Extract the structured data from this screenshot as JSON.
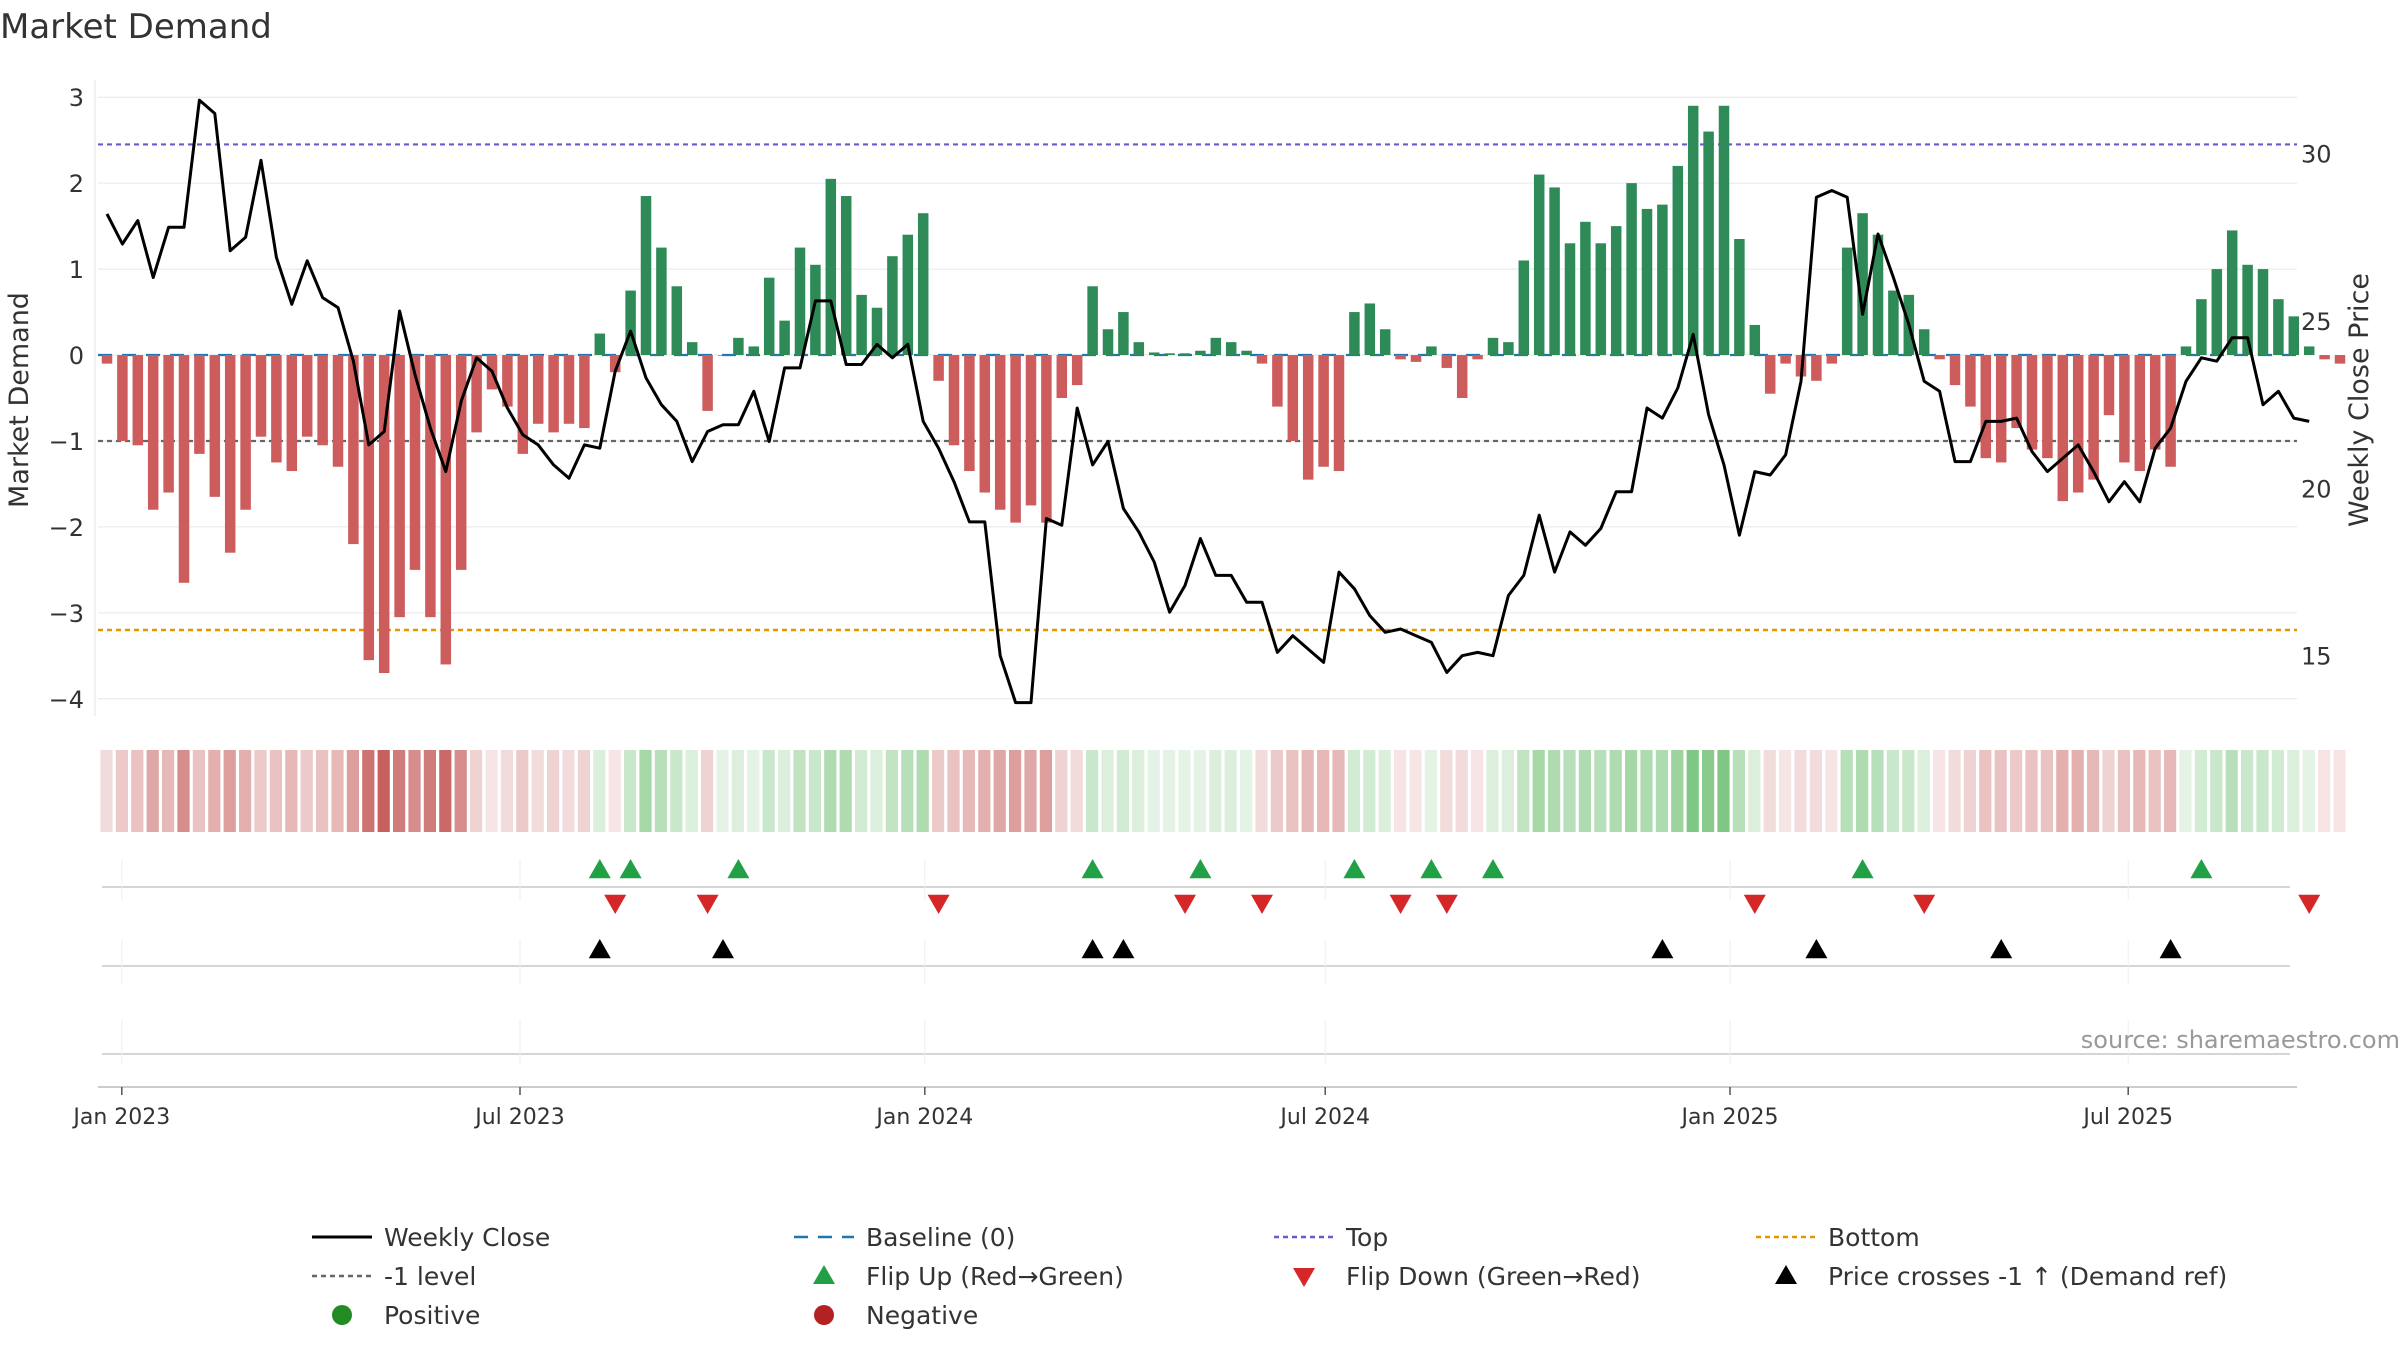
{
  "title": "Market Demand",
  "source": "source: sharemaestro.com",
  "colors": {
    "positive_bar": "#2e8b57",
    "negative_bar": "#cd5c5c",
    "price_line": "#000000",
    "top_line": "#6a5acd",
    "bottom_line": "#e69500",
    "minus1_line": "#666666",
    "baseline": "#1f77b4",
    "flip_up": "#22a045",
    "flip_down": "#d62728",
    "cross": "#000000",
    "strip_pos": "#4caf50",
    "strip_neg": "#c0504d",
    "grid": "#e6e6e6",
    "axis_text": "#333333",
    "source_text": "#999999"
  },
  "chart_data": {
    "type": "bar",
    "title": "Market Demand",
    "ylabel": "Market Demand",
    "y2label": "Weekly Close Price",
    "ylim": [
      -4.2,
      3.2
    ],
    "y2lim": [
      13.2,
      32.2
    ],
    "yticks": [
      -4,
      -3,
      -2,
      -1,
      0,
      1,
      2,
      3
    ],
    "y2ticks": [
      15,
      20,
      25,
      30
    ],
    "top_level": 2.45,
    "bottom_level": -3.2,
    "minus1_level": -1,
    "x_start": "2022-12-23",
    "week_days": 7,
    "x_ticks": [
      {
        "label": "Jan 2023",
        "day": 9
      },
      {
        "label": "Jul 2023",
        "day": 190
      },
      {
        "label": "Jan 2024",
        "day": 374
      },
      {
        "label": "Jul 2024",
        "day": 556
      },
      {
        "label": "Jan 2025",
        "day": 740
      },
      {
        "label": "Jul 2025",
        "day": 921
      }
    ],
    "demand": [
      -0.1,
      -1.0,
      -1.05,
      -1.8,
      -1.6,
      -2.65,
      -1.15,
      -1.65,
      -2.3,
      -1.8,
      -0.95,
      -1.25,
      -1.35,
      -0.95,
      -1.05,
      -1.3,
      -2.2,
      -3.55,
      -3.7,
      -3.05,
      -2.5,
      -3.05,
      -3.6,
      -2.5,
      -0.9,
      -0.4,
      -0.6,
      -1.15,
      -0.8,
      -0.9,
      -0.8,
      -0.85,
      0.25,
      -0.2,
      0.75,
      1.85,
      1.25,
      0.8,
      0.15,
      -0.65,
      0.0,
      0.2,
      0.1,
      0.9,
      0.4,
      1.25,
      1.05,
      2.05,
      1.85,
      0.7,
      0.55,
      1.15,
      1.4,
      1.65,
      -0.3,
      -1.05,
      -1.35,
      -1.6,
      -1.8,
      -1.95,
      -1.75,
      -1.95,
      -0.5,
      -0.35,
      0.8,
      0.3,
      0.5,
      0.15,
      0.03,
      0.02,
      0.02,
      0.05,
      0.2,
      0.15,
      0.05,
      -0.1,
      -0.6,
      -1.0,
      -1.45,
      -1.3,
      -1.35,
      0.5,
      0.6,
      0.3,
      -0.05,
      -0.08,
      0.1,
      -0.15,
      -0.5,
      -0.05,
      0.2,
      0.15,
      1.1,
      2.1,
      1.95,
      1.3,
      1.55,
      1.3,
      1.5,
      2.0,
      1.7,
      1.75,
      2.2,
      2.9,
      2.6,
      2.9,
      1.35,
      0.35,
      -0.45,
      -0.1,
      -0.25,
      -0.3,
      -0.1,
      1.25,
      1.65,
      1.4,
      0.75,
      0.7,
      0.3,
      -0.05,
      -0.35,
      -0.6,
      -1.2,
      -1.25,
      -0.85,
      -1.1,
      -1.2,
      -1.7,
      -1.6,
      -1.45,
      -0.7,
      -1.25,
      -1.35,
      -1.1,
      -1.3,
      0.1,
      0.65,
      1.0,
      1.45,
      1.05,
      1.0,
      0.65,
      0.45,
      0.1,
      -0.05,
      -0.1
    ],
    "close": [
      28.2,
      27.3,
      28.0,
      26.3,
      27.8,
      27.8,
      31.6,
      31.2,
      27.1,
      27.5,
      29.8,
      26.9,
      25.5,
      26.8,
      25.7,
      25.4,
      23.8,
      21.3,
      21.7,
      25.3,
      23.4,
      21.8,
      20.5,
      22.6,
      23.9,
      23.5,
      22.4,
      21.6,
      21.3,
      20.7,
      20.3,
      21.3,
      21.2,
      23.5,
      24.7,
      23.3,
      22.5,
      22.0,
      20.8,
      21.7,
      21.9,
      21.9,
      22.9,
      21.4,
      23.6,
      23.6,
      25.6,
      25.6,
      23.7,
      23.7,
      24.3,
      23.9,
      24.3,
      22.0,
      21.2,
      20.2,
      19.0,
      19.0,
      15.0,
      13.6,
      13.6,
      19.1,
      18.9,
      22.4,
      20.7,
      21.4,
      19.4,
      18.7,
      17.8,
      16.3,
      17.1,
      18.5,
      17.4,
      17.4,
      16.6,
      16.6,
      15.1,
      15.6,
      15.2,
      14.8,
      17.5,
      17.0,
      16.2,
      15.7,
      15.8,
      15.6,
      15.4,
      14.5,
      15.0,
      15.1,
      15.0,
      16.8,
      17.4,
      19.2,
      17.5,
      18.7,
      18.3,
      18.8,
      19.9,
      19.9,
      22.4,
      22.1,
      23.0,
      24.6,
      22.2,
      20.7,
      18.6,
      20.5,
      20.4,
      21.0,
      23.2,
      28.7,
      28.9,
      28.7,
      25.2,
      27.6,
      26.3,
      24.9,
      23.2,
      22.9,
      20.8,
      20.8,
      22.0,
      22.0,
      22.1,
      21.1,
      20.5,
      20.9,
      21.3,
      20.5,
      19.6,
      20.2,
      19.6,
      21.2,
      21.8,
      23.2,
      23.9,
      23.8,
      24.5,
      24.5,
      22.5,
      22.9,
      22.1,
      22.0
    ],
    "strip_intensity": [
      0.2,
      0.3,
      0.35,
      0.5,
      0.4,
      0.65,
      0.35,
      0.45,
      0.55,
      0.45,
      0.3,
      0.35,
      0.4,
      0.3,
      0.35,
      0.4,
      0.55,
      0.8,
      0.9,
      0.75,
      0.65,
      0.75,
      0.85,
      0.65,
      0.25,
      0.15,
      0.2,
      0.3,
      0.2,
      0.25,
      0.2,
      0.25,
      0.2,
      0.15,
      0.3,
      0.5,
      0.4,
      0.3,
      0.2,
      0.25,
      0.15,
      0.2,
      0.15,
      0.3,
      0.2,
      0.35,
      0.3,
      0.45,
      0.45,
      0.25,
      0.2,
      0.35,
      0.4,
      0.45,
      0.3,
      0.35,
      0.4,
      0.45,
      0.5,
      0.55,
      0.5,
      0.55,
      0.25,
      0.2,
      0.3,
      0.2,
      0.25,
      0.2,
      0.15,
      0.15,
      0.15,
      0.15,
      0.2,
      0.2,
      0.15,
      0.2,
      0.3,
      0.35,
      0.4,
      0.4,
      0.4,
      0.25,
      0.25,
      0.2,
      0.15,
      0.15,
      0.15,
      0.2,
      0.2,
      0.15,
      0.2,
      0.2,
      0.35,
      0.5,
      0.45,
      0.4,
      0.45,
      0.4,
      0.45,
      0.5,
      0.45,
      0.45,
      0.55,
      0.7,
      0.65,
      0.7,
      0.4,
      0.2,
      0.2,
      0.15,
      0.2,
      0.2,
      0.15,
      0.4,
      0.45,
      0.4,
      0.3,
      0.3,
      0.2,
      0.15,
      0.2,
      0.25,
      0.35,
      0.35,
      0.3,
      0.35,
      0.35,
      0.45,
      0.45,
      0.4,
      0.25,
      0.35,
      0.4,
      0.35,
      0.4,
      0.15,
      0.25,
      0.3,
      0.4,
      0.3,
      0.3,
      0.25,
      0.2,
      0.15,
      0.15,
      0.15
    ],
    "flip_up_weeks": [
      32,
      34,
      41,
      64,
      71,
      81,
      86,
      90,
      114,
      136
    ],
    "flip_down_weeks": [
      33,
      39,
      54,
      70,
      75,
      84,
      87,
      107,
      118,
      143
    ],
    "cross_weeks": [
      32,
      40,
      64,
      66,
      101,
      111,
      123,
      134
    ],
    "legend": [
      {
        "label": "Weekly Close",
        "symbol": "line-solid",
        "color": "#000000"
      },
      {
        "label": "Baseline (0)",
        "symbol": "line-dash",
        "color": "#1f77b4"
      },
      {
        "label": "Top",
        "symbol": "line-dot",
        "color": "#6a5acd"
      },
      {
        "label": "Bottom",
        "symbol": "line-dot",
        "color": "#e69500"
      },
      {
        "label": "-1 level",
        "symbol": "line-dot",
        "color": "#666666"
      },
      {
        "label": "Flip Up (Red→Green)",
        "symbol": "triangle-up",
        "color": "#22a045"
      },
      {
        "label": "Flip Down (Green→Red)",
        "symbol": "triangle-down",
        "color": "#d62728"
      },
      {
        "label": "Price crosses -1 ↑ (Demand ref)",
        "symbol": "triangle-up",
        "color": "#000000"
      },
      {
        "label": "Positive",
        "symbol": "circle",
        "color": "#228b22"
      },
      {
        "label": "Negative",
        "symbol": "circle",
        "color": "#b22222"
      }
    ]
  }
}
